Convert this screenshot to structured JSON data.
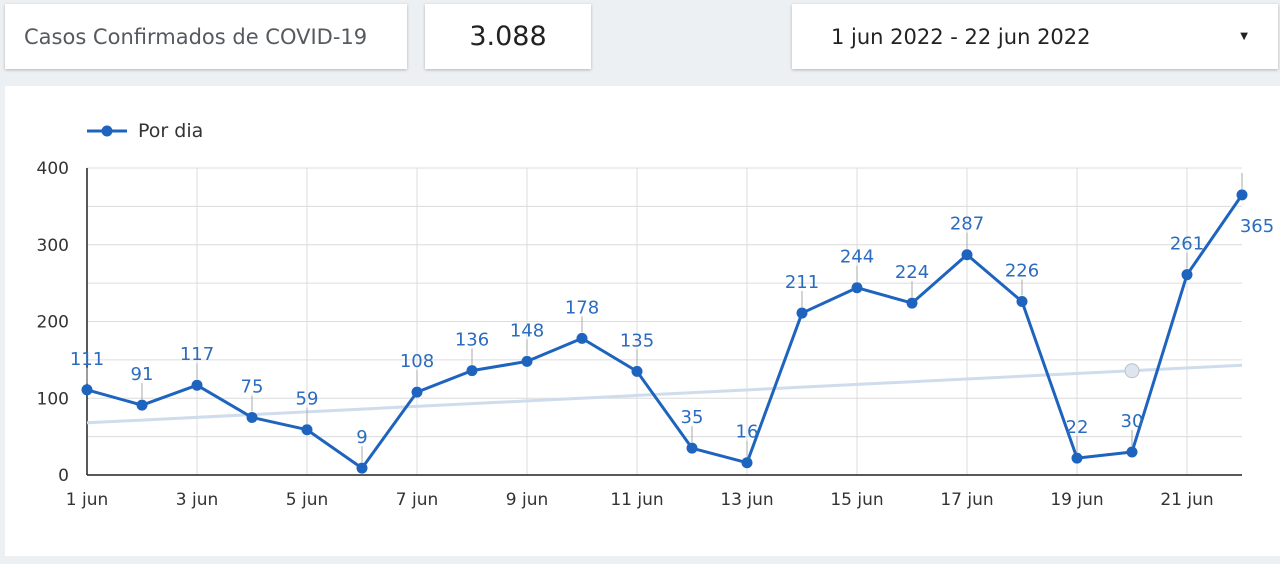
{
  "header": {
    "title": "Casos Confirmados de COVID-19",
    "total": "3.088",
    "date_range": "1 jun 2022 - 22 jun 2022"
  },
  "colors": {
    "series": "#1e64be",
    "trend": "#cfdcec",
    "grid": "#dcdcdc",
    "data_label": "#2b6cbf"
  },
  "chart_data": {
    "type": "line",
    "legend": {
      "position": "top-left",
      "entries": [
        "Por dia"
      ]
    },
    "grid": true,
    "ylim": [
      0,
      400
    ],
    "y_ticks": [
      "0",
      "100",
      "200",
      "300",
      "400"
    ],
    "x_ticks": [
      "1 jun",
      "3 jun",
      "5 jun",
      "7 jun",
      "9 jun",
      "11 jun",
      "13 jun",
      "15 jun",
      "17 jun",
      "19 jun",
      "21 jun"
    ],
    "x": [
      "1 jun",
      "2 jun",
      "3 jun",
      "4 jun",
      "5 jun",
      "6 jun",
      "7 jun",
      "8 jun",
      "9 jun",
      "10 jun",
      "11 jun",
      "12 jun",
      "13 jun",
      "14 jun",
      "15 jun",
      "16 jun",
      "17 jun",
      "18 jun",
      "19 jun",
      "20 jun",
      "21 jun",
      "22 jun"
    ],
    "series": [
      {
        "name": "Por dia",
        "values": [
          111,
          91,
          117,
          75,
          59,
          9,
          108,
          136,
          148,
          178,
          135,
          35,
          16,
          211,
          244,
          224,
          287,
          226,
          22,
          30,
          261,
          365
        ]
      }
    ],
    "trendline": {
      "start": 68,
      "end": 143
    }
  }
}
